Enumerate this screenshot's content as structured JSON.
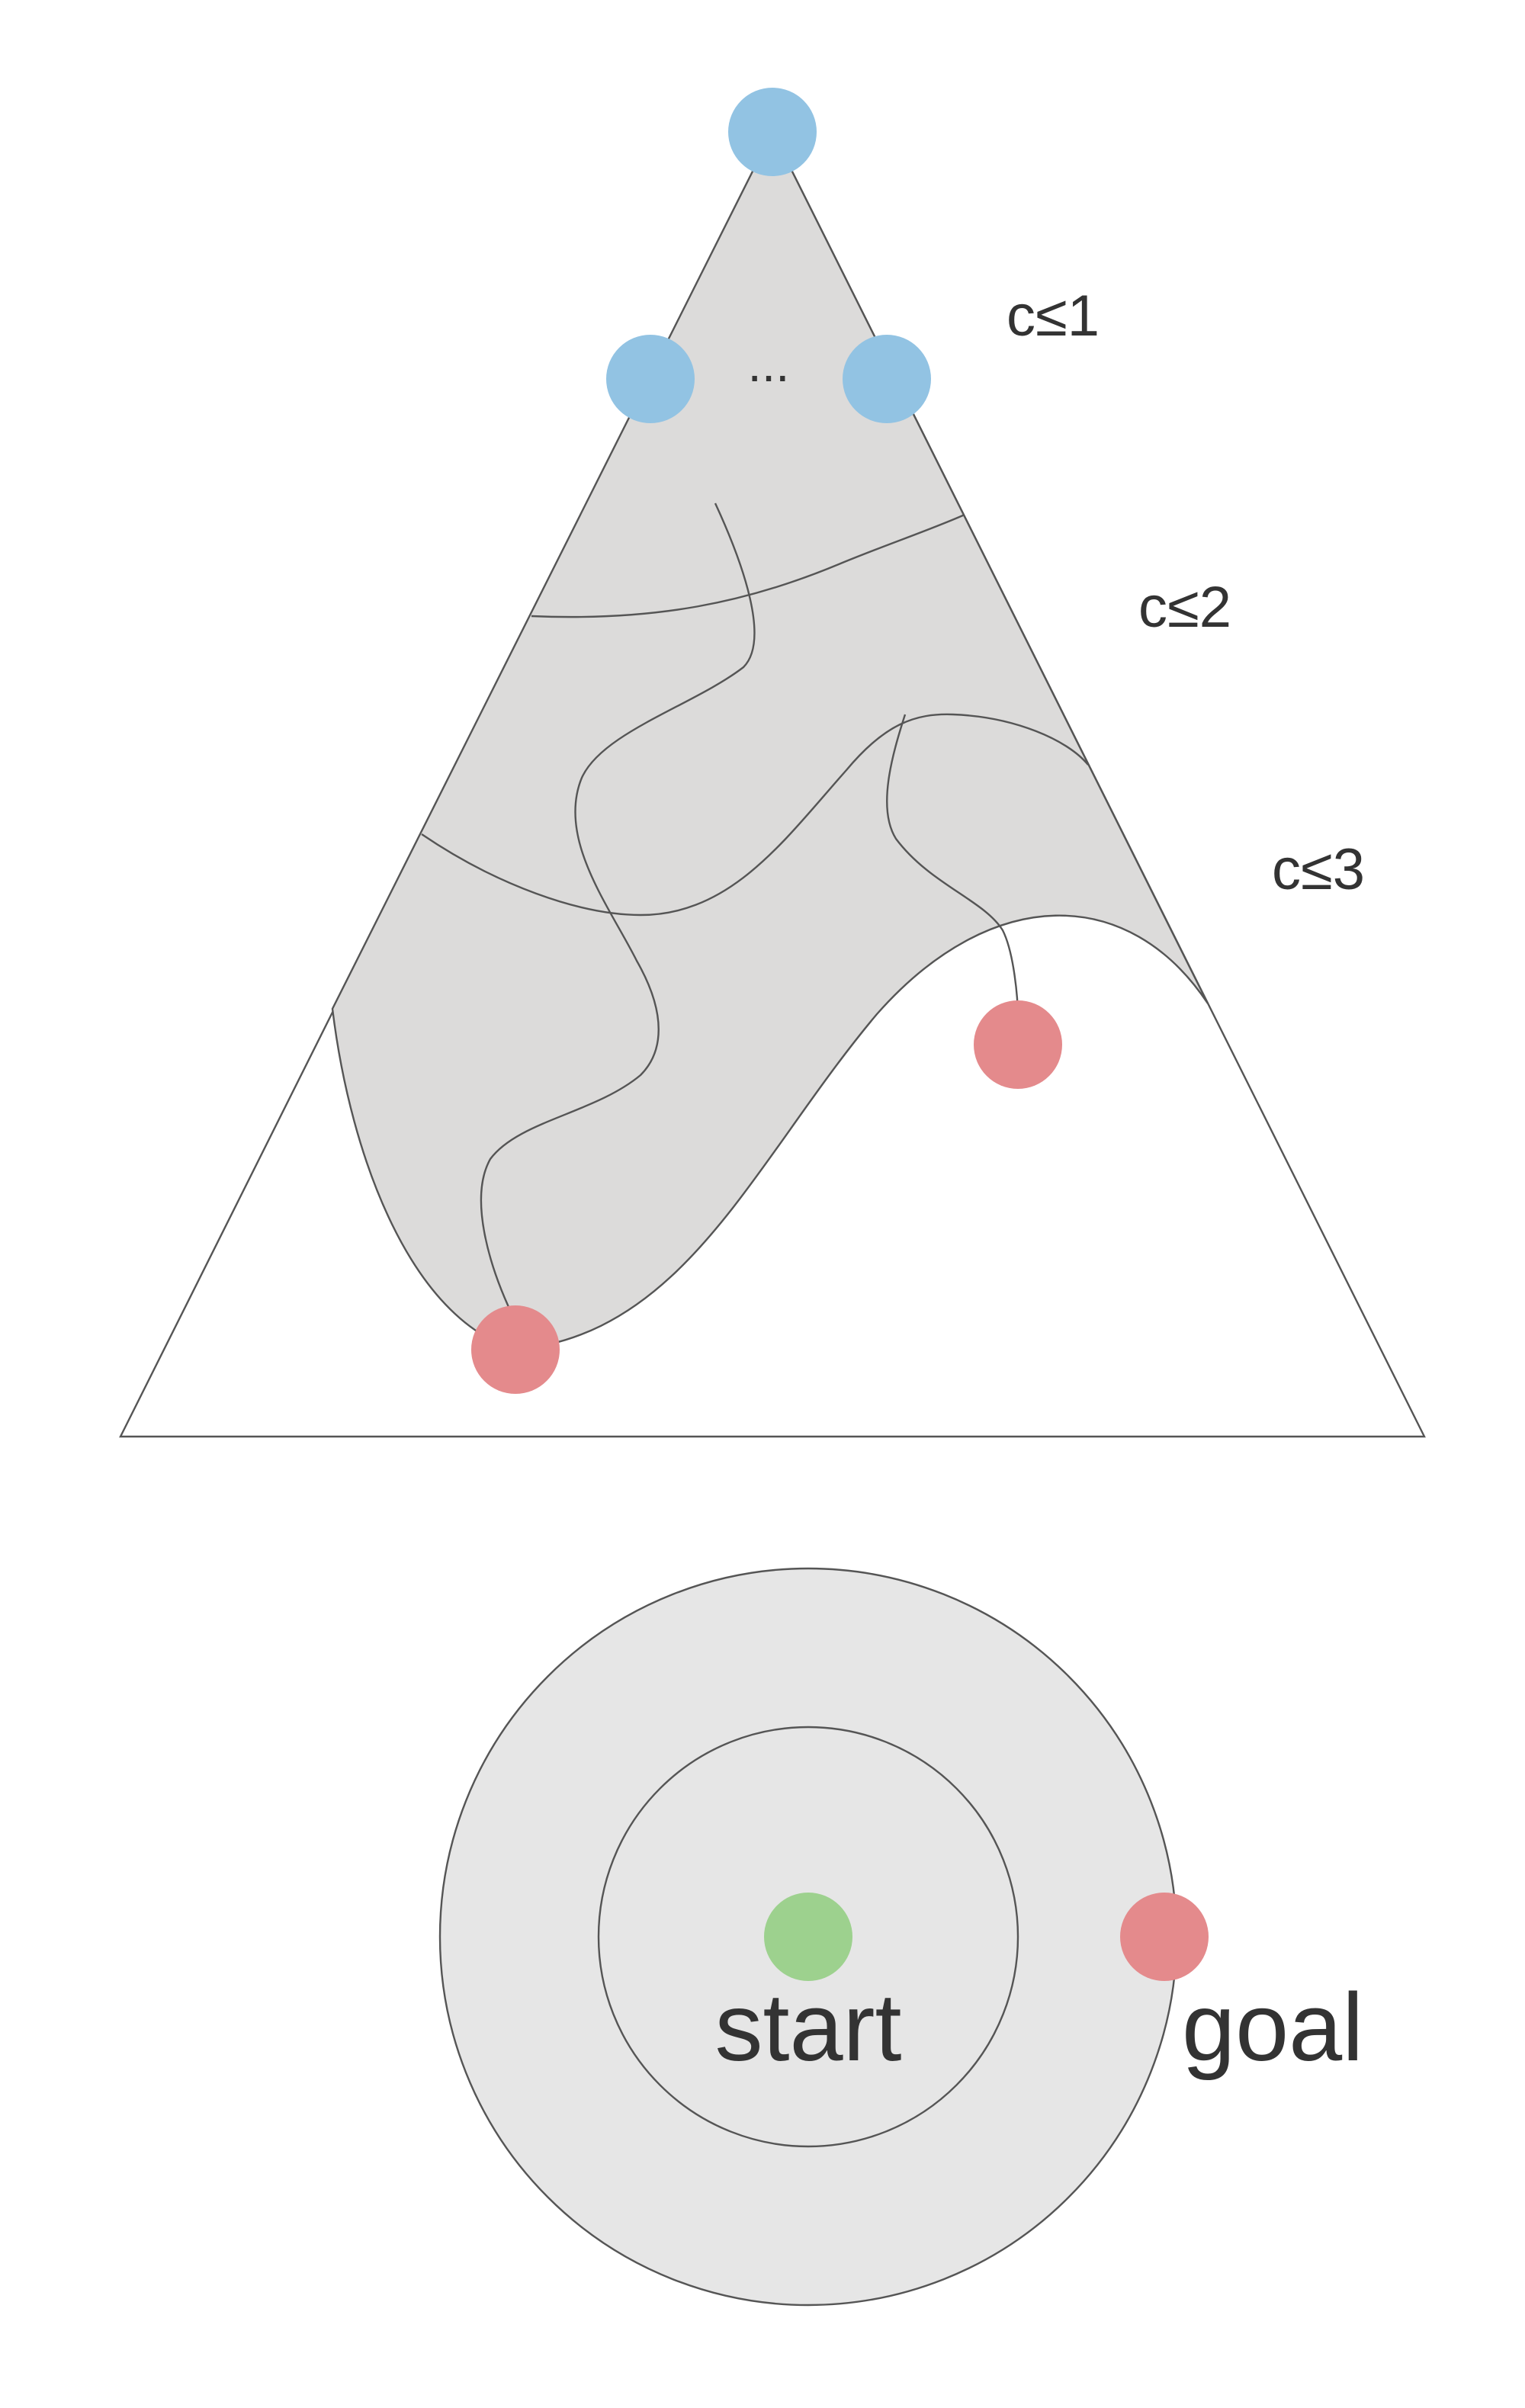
{
  "colors": {
    "explored_region": "#dcdbda",
    "disc_fill": "#e6e6e6",
    "outline": "#555555",
    "start_node": "#9dd18e",
    "leaf_node": "#e48a8c",
    "root_node": "#92c3e3"
  },
  "tree": {
    "ellipsis": "...",
    "cost_levels": [
      "c≤1",
      "c≤2",
      "c≤3"
    ]
  },
  "disc": {
    "start_label": "start",
    "goal_label": "goal"
  }
}
